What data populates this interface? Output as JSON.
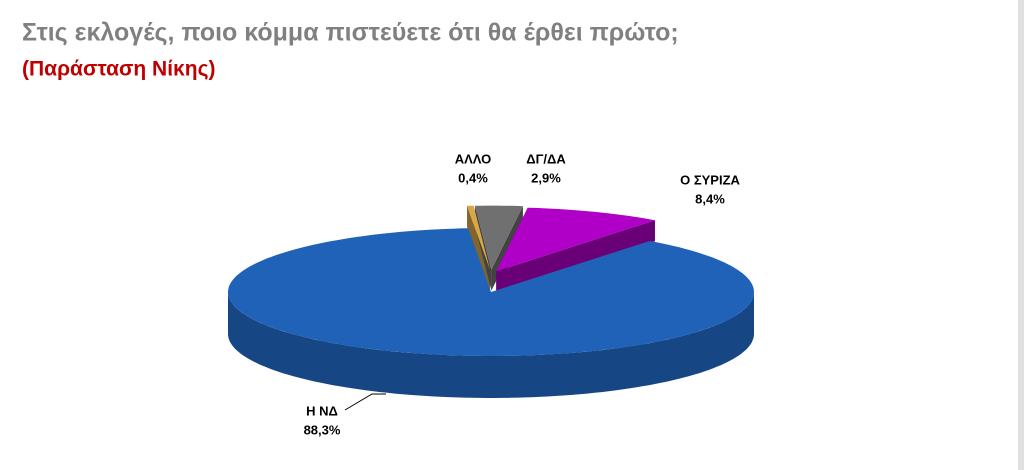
{
  "chart_data": {
    "type": "pie",
    "title": "Στις εκλογές, ποιο κόμμα πιστεύετε ότι θα έρθει πρώτο;",
    "subtitle": "(Παράσταση Νίκης)",
    "categories": [
      "ΑΛΛΟ",
      "ΔΓ/ΔΑ",
      "Ο ΣΥΡΙΖΑ",
      "Η ΝΔ"
    ],
    "values": [
      0.4,
      2.9,
      8.4,
      88.3
    ],
    "value_labels": [
      "0,4%",
      "2,9%",
      "8,4%",
      "88,3%"
    ],
    "colors": [
      "#d8a848",
      "#707070",
      "#b000c8",
      "#1f62b8"
    ]
  }
}
